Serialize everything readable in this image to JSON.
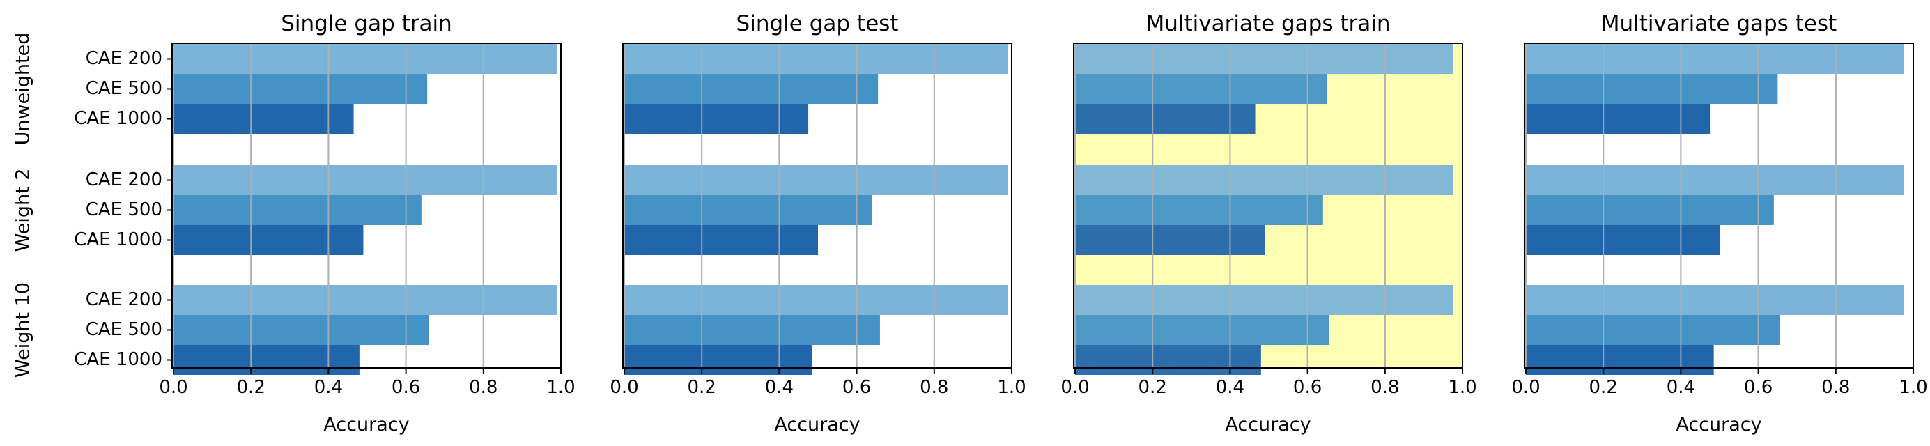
{
  "chart_data": [
    {
      "type": "bar",
      "orientation": "horizontal",
      "title": "Single gap train",
      "xlabel": "Accuracy",
      "ylabel": "",
      "xlim": [
        0,
        1.0
      ],
      "xticks": [
        "0.0",
        "0.2",
        "0.4",
        "0.6",
        "0.8",
        "1.0"
      ],
      "grid": "vertical",
      "groups": [
        "Unweighted",
        "Weight 2",
        "Weight 10"
      ],
      "categories": [
        "CAE 200",
        "CAE 500",
        "CAE 1000"
      ],
      "values": [
        [
          0.99,
          0.655,
          0.465
        ],
        [
          0.99,
          0.64,
          0.49
        ],
        [
          0.99,
          0.66,
          0.48
        ]
      ],
      "background": "#ffffff"
    },
    {
      "type": "bar",
      "orientation": "horizontal",
      "title": "Single gap test",
      "xlabel": "Accuracy",
      "ylabel": "",
      "xlim": [
        0,
        1.0
      ],
      "xticks": [
        "0.0",
        "0.2",
        "0.4",
        "0.6",
        "0.8",
        "1.0"
      ],
      "grid": "vertical",
      "groups": [
        "Unweighted",
        "Weight 2",
        "Weight 10"
      ],
      "categories": [
        "CAE 200",
        "CAE 500",
        "CAE 1000"
      ],
      "values": [
        [
          0.99,
          0.655,
          0.475
        ],
        [
          0.99,
          0.64,
          0.5
        ],
        [
          0.99,
          0.66,
          0.485
        ]
      ],
      "background": "#ffffff"
    },
    {
      "type": "bar",
      "orientation": "horizontal",
      "title": "Multivariate gaps train",
      "xlabel": "Accuracy",
      "ylabel": "",
      "xlim": [
        0,
        1.0
      ],
      "xticks": [
        "0.0",
        "0.2",
        "0.4",
        "0.6",
        "0.8",
        "1.0"
      ],
      "grid": "vertical",
      "groups": [
        "Unweighted",
        "Weight 2",
        "Weight 10"
      ],
      "categories": [
        "CAE 200",
        "CAE 500",
        "CAE 1000"
      ],
      "values": [
        [
          0.975,
          0.65,
          0.465
        ],
        [
          0.975,
          0.64,
          0.49
        ],
        [
          0.975,
          0.655,
          0.48
        ]
      ],
      "background": "#ffffb3"
    },
    {
      "type": "bar",
      "orientation": "horizontal",
      "title": "Multivariate gaps test",
      "xlabel": "Accuracy",
      "ylabel": "",
      "xlim": [
        0,
        1.0
      ],
      "xticks": [
        "0.0",
        "0.2",
        "0.4",
        "0.6",
        "0.8",
        "1.0"
      ],
      "grid": "vertical",
      "groups": [
        "Unweighted",
        "Weight 2",
        "Weight 10"
      ],
      "categories": [
        "CAE 200",
        "CAE 500",
        "CAE 1000"
      ],
      "values": [
        [
          0.975,
          0.65,
          0.475
        ],
        [
          0.975,
          0.64,
          0.5
        ],
        [
          0.975,
          0.655,
          0.485
        ]
      ],
      "background": "#ffffff"
    }
  ],
  "colors": {
    "CAE 200": "#7bb4d8",
    "CAE 500": "#4592c6",
    "CAE 1000": "#2166ab",
    "grid": "#b0b0b0",
    "axis": "#000000"
  }
}
